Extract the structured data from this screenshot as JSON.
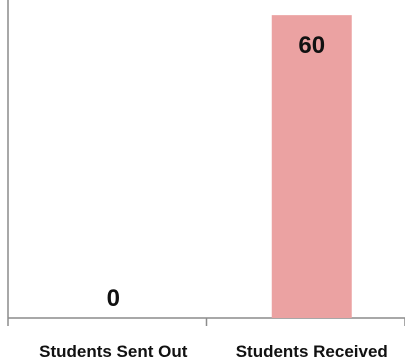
{
  "chart_data": {
    "type": "bar",
    "categories": [
      "Students Sent Out",
      "Students Received"
    ],
    "values": [
      0,
      60
    ],
    "data_labels": [
      "0",
      "60"
    ],
    "title": "",
    "xlabel": "",
    "ylabel": "",
    "ylim": [
      0,
      63
    ],
    "grid": false,
    "legend": "none",
    "colors": {
      "bar": "#eba2a2",
      "axis": "#8c8c8c"
    }
  }
}
